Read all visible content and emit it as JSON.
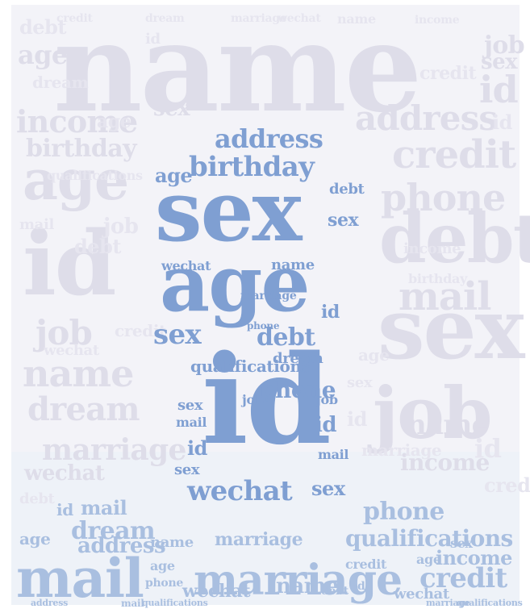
{
  "wordcloud": {
    "name": "name",
    "sex": "sex",
    "age": "age",
    "id": "id",
    "debt": "debt",
    "job": "job",
    "mail": "mail",
    "marriage": "marriage",
    "credit": "credit",
    "income": "income",
    "address": "address",
    "birthday": "birthday",
    "phone": "phone",
    "wechat": "wechat",
    "dream": "dream",
    "qualifications": "qualifications"
  },
  "colors": {
    "figure": "#7f9fd2",
    "background_words": "#dedde9",
    "bottom_words": "#a9bfe0",
    "canvas": "#f3f3f8"
  }
}
